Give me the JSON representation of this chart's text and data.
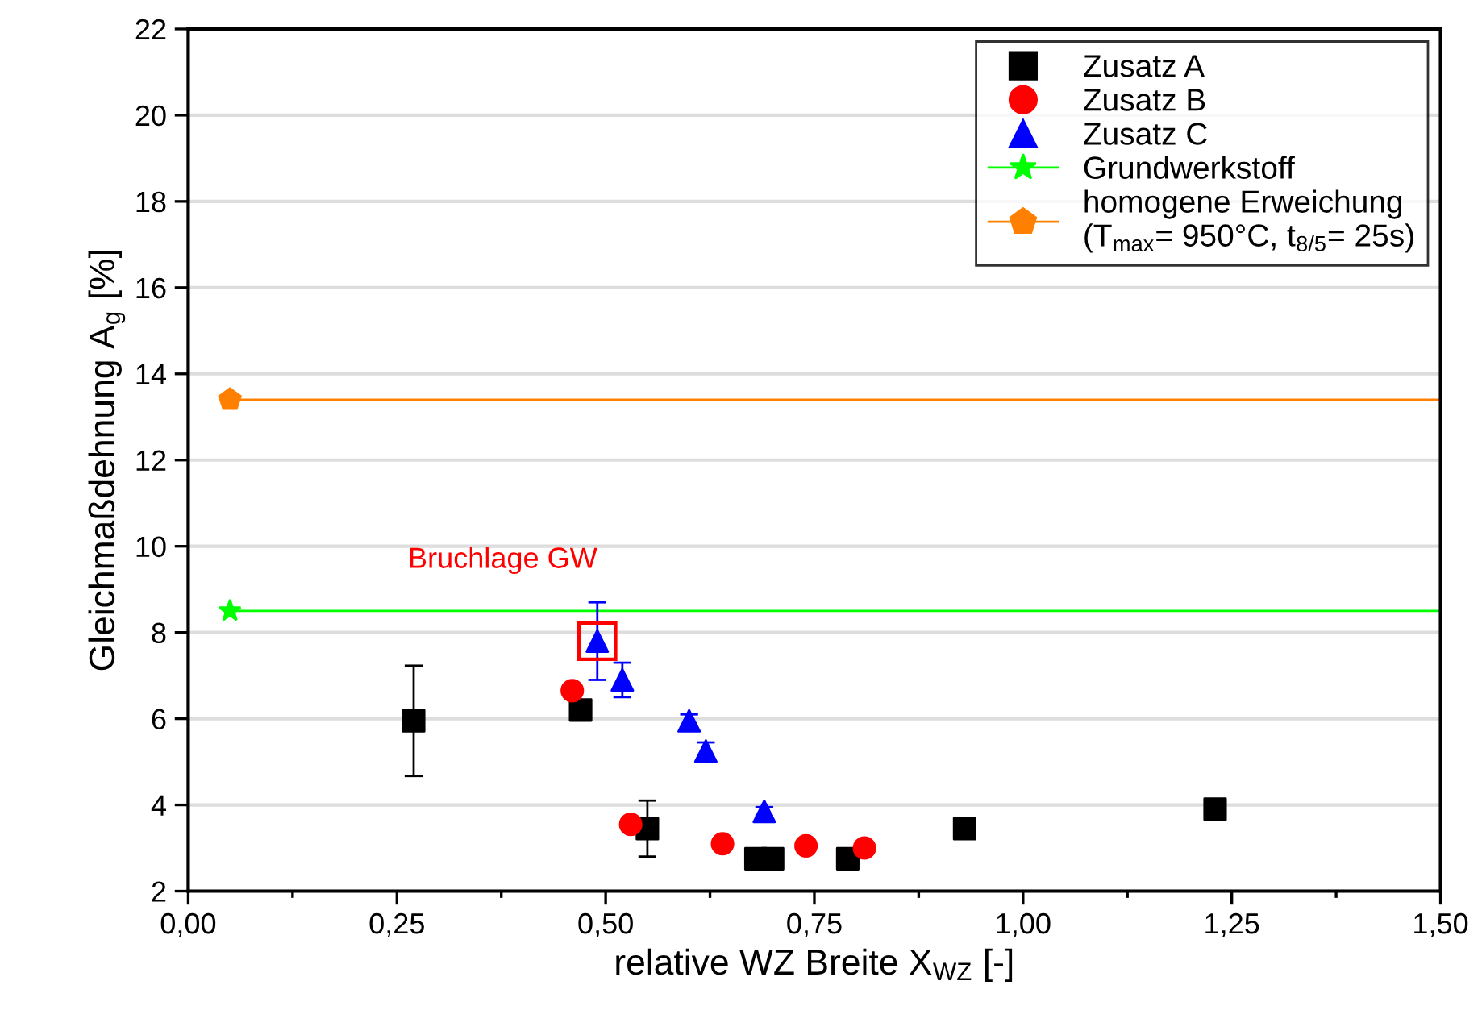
{
  "chart_data": {
    "type": "scatter",
    "xlabel": "relative WZ Breite X$_{WZ}$ [-]",
    "ylabel": "Gleichmaßdehnung A$_{g}$ [%]",
    "xlim": [
      0,
      1.5
    ],
    "ylim": [
      2,
      22
    ],
    "xticks": [
      {
        "value": 0,
        "label": "0,00"
      },
      {
        "value": 0.125,
        "label": null
      },
      {
        "value": 0.25,
        "label": "0,25"
      },
      {
        "value": 0.375,
        "label": null
      },
      {
        "value": 0.5,
        "label": "0,50"
      },
      {
        "value": 0.625,
        "label": null
      },
      {
        "value": 0.75,
        "label": "0,75"
      },
      {
        "value": 0.875,
        "label": null
      },
      {
        "value": 1.0,
        "label": "1,00"
      },
      {
        "value": 1.125,
        "label": null
      },
      {
        "value": 1.25,
        "label": "1,25"
      },
      {
        "value": 1.375,
        "label": null
      },
      {
        "value": 1.5,
        "label": "1,50"
      }
    ],
    "yticks": [
      2,
      4,
      6,
      8,
      10,
      12,
      14,
      16,
      18,
      20,
      22
    ],
    "grid": "y",
    "legend": "top right",
    "series": [
      {
        "name": "Zusatz A",
        "marker": "square",
        "color": "#000000",
        "x": [
          0.27,
          0.47,
          0.55,
          0.68,
          0.7,
          0.79,
          0.93,
          1.23
        ],
        "values": [
          5.95,
          6.2,
          3.45,
          2.75,
          2.75,
          2.75,
          3.45,
          3.9
        ],
        "errors": [
          1.28,
          null,
          0.65,
          null,
          null,
          null,
          null,
          0.2
        ]
      },
      {
        "name": "Zusatz B",
        "marker": "circle",
        "color": "#ff0000",
        "x": [
          0.46,
          0.53,
          0.64,
          0.74,
          0.81
        ],
        "values": [
          6.65,
          3.55,
          3.1,
          3.05,
          3.0
        ]
      },
      {
        "name": "Zusatz C",
        "marker": "triangle",
        "color": "#0000ff",
        "x": [
          0.49,
          0.52,
          0.6,
          0.62,
          0.69
        ],
        "values": [
          7.8,
          6.9,
          5.95,
          5.25,
          3.85
        ],
        "errors": [
          0.9,
          0.4,
          0.15,
          0.2,
          0.1
        ]
      },
      {
        "name": "Grundwerkstoff",
        "type": "line",
        "marker": "star",
        "color": "#00ff00",
        "x": [
          0.05,
          1.5
        ],
        "values": [
          8.5,
          8.5
        ]
      },
      {
        "name": "homogene Erweichung\n(T$_{max}$= 950°C, t$_{8/5}$= 25s)",
        "type": "line",
        "color": "#ff8000",
        "x": [
          0.05,
          1.5
        ],
        "values": [
          13.4,
          13.4
        ]
      }
    ],
    "annotations": [
      {
        "text": "Bruchlage GW",
        "x": 0.49,
        "y": 7.8
      }
    ]
  }
}
